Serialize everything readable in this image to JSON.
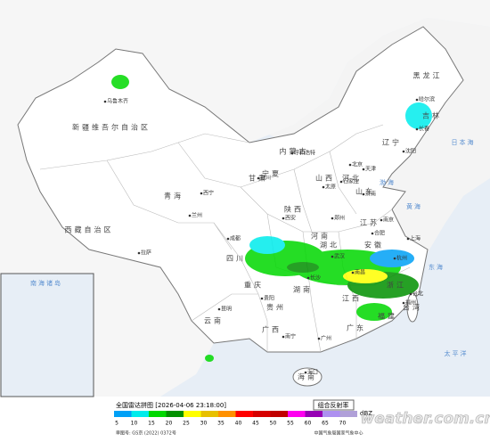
{
  "header": {
    "title": "全国雷达拼图 [2026-04-06 23:18:00]",
    "product": "组合反射率",
    "unit": "dBZ"
  },
  "legend": {
    "levels": [
      {
        "value": 5,
        "color": "#00a0f6"
      },
      {
        "value": 10,
        "color": "#00ecec"
      },
      {
        "value": 15,
        "color": "#00d800"
      },
      {
        "value": 20,
        "color": "#019000"
      },
      {
        "value": 25,
        "color": "#ffff00"
      },
      {
        "value": 30,
        "color": "#e7c000"
      },
      {
        "value": 35,
        "color": "#ff9000"
      },
      {
        "value": 40,
        "color": "#ff0000"
      },
      {
        "value": 45,
        "color": "#d60000"
      },
      {
        "value": 50,
        "color": "#c00000"
      },
      {
        "value": 55,
        "color": "#ff00f0"
      },
      {
        "value": 60,
        "color": "#9600b4"
      },
      {
        "value": 65,
        "color": "#ad90f0"
      },
      {
        "value": 70,
        "color": "#b0a0d8"
      }
    ]
  },
  "footer": {
    "approval": "审图号: GS京 (2022) 0372号",
    "source": "中国气象局国家气象中心",
    "watermark": "weather.com.cn"
  },
  "map": {
    "regions": [
      "新疆维吾尔自治区",
      "西藏自治区",
      "青海",
      "甘肃",
      "内蒙古",
      "黑龙江",
      "吉林",
      "辽宁",
      "四川",
      "云南",
      "贵州",
      "湖南",
      "湖北",
      "广西",
      "广东",
      "江西",
      "福建",
      "浙江",
      "安徽",
      "江苏",
      "山东",
      "河南",
      "河北",
      "山西",
      "陕西",
      "宁夏",
      "重庆",
      "海南",
      "台湾"
    ],
    "cities": [
      "乌鲁木齐",
      "拉萨",
      "西宁",
      "兰州",
      "成都",
      "昆明",
      "贵阳",
      "长沙",
      "武汉",
      "南宁",
      "广州",
      "福州",
      "南昌",
      "合肥",
      "南京",
      "杭州",
      "济南",
      "郑州",
      "石家庄",
      "太原",
      "西安",
      "银川",
      "呼和浩特",
      "哈尔滨",
      "长春",
      "沈阳",
      "海口",
      "台北",
      "北京",
      "天津",
      "上海"
    ],
    "seas": [
      "日本海",
      "黄海",
      "东海",
      "太平洋",
      "渤海",
      "南海诸岛"
    ]
  }
}
